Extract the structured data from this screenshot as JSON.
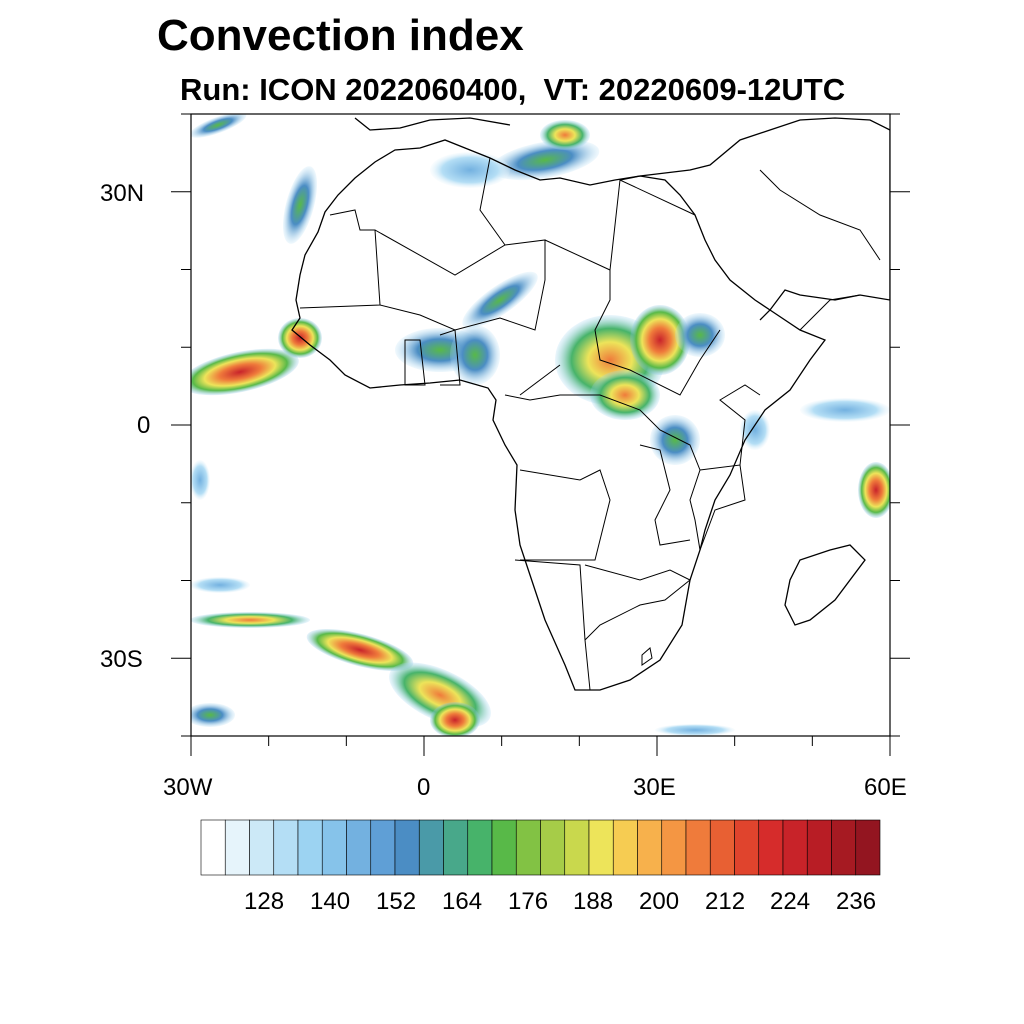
{
  "title": "Convection index",
  "subtitle": "Run: ICON 2022060400,  VT: 20220609-12UTC",
  "map": {
    "lon_range": [
      -30,
      60
    ],
    "lat_range": [
      -40,
      40
    ],
    "lat_labels": [
      "30N",
      "0",
      "30S"
    ],
    "lat_values": [
      30,
      0,
      -30
    ],
    "lon_labels": [
      "30W",
      "0",
      "30E",
      "60E"
    ],
    "lon_values": [
      -30,
      0,
      30,
      60
    ]
  },
  "colorbar": {
    "colors": [
      "#ffffff",
      "#e6f4fb",
      "#cce9f7",
      "#b4def5",
      "#9cd3f2",
      "#86c3ea",
      "#73b1e0",
      "#5f9fd6",
      "#4b8dc4",
      "#4a9aa8",
      "#48a88a",
      "#47b36a",
      "#58b948",
      "#82c244",
      "#a6cc48",
      "#c9d84d",
      "#ede45a",
      "#f6cc52",
      "#f7b14c",
      "#f49643",
      "#ef7b3b",
      "#e86033",
      "#e0442d",
      "#d62c2b",
      "#c82329",
      "#b81d25",
      "#a61a22",
      "#931520"
    ],
    "tick_labels": [
      "128",
      "140",
      "152",
      "164",
      "176",
      "188",
      "200",
      "212",
      "224",
      "236"
    ]
  }
}
